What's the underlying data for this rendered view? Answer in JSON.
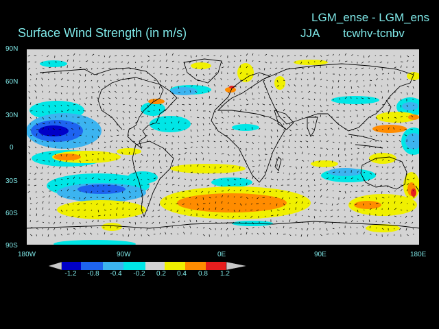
{
  "header": {
    "title": "Surface Wind Strength (in m/s)",
    "experiment": "LGM_ense - LGM_ens",
    "season": "JJA",
    "variables": "tcwhv-tcnbv"
  },
  "lat_labels": [
    "90N",
    "60N",
    "30N",
    "0",
    "30S",
    "60S",
    "90S"
  ],
  "lon_labels": [
    "180W",
    "90W",
    "0E",
    "90E",
    "180E"
  ],
  "colorbar": {
    "labels": [
      "-1.2",
      "-0.8",
      "-0.4",
      "-0.2",
      "0.2",
      "0.4",
      "0.8",
      "1.2"
    ],
    "colors": [
      "#0000c8",
      "#1e64f0",
      "#3cb4f0",
      "#00e6e6",
      "#d2d2d2",
      "#f0f000",
      "#ff8c00",
      "#e61e1e",
      "#c8c8c8"
    ]
  },
  "colors": {
    "land_bg": "#d4d4d4",
    "text": "#7fe8e8"
  }
}
